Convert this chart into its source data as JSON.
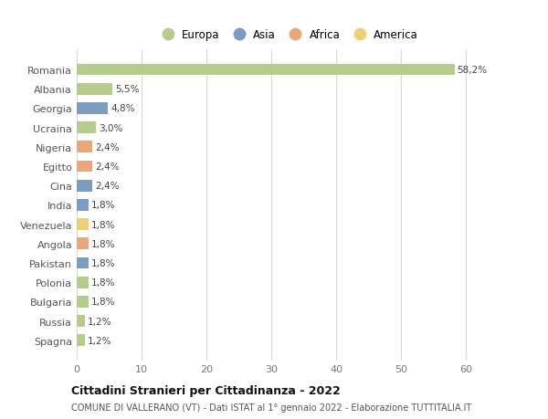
{
  "countries": [
    "Romania",
    "Albania",
    "Georgia",
    "Ucraina",
    "Nigeria",
    "Egitto",
    "Cina",
    "India",
    "Venezuela",
    "Angola",
    "Pakistan",
    "Polonia",
    "Bulgaria",
    "Russia",
    "Spagna"
  ],
  "values": [
    58.2,
    5.5,
    4.8,
    3.0,
    2.4,
    2.4,
    2.4,
    1.8,
    1.8,
    1.8,
    1.8,
    1.8,
    1.8,
    1.2,
    1.2
  ],
  "labels": [
    "58,2%",
    "5,5%",
    "4,8%",
    "3,0%",
    "2,4%",
    "2,4%",
    "2,4%",
    "1,8%",
    "1,8%",
    "1,8%",
    "1,8%",
    "1,8%",
    "1,8%",
    "1,2%",
    "1,2%"
  ],
  "continent": [
    "Europa",
    "Europa",
    "Asia",
    "Europa",
    "Africa",
    "Africa",
    "Asia",
    "Asia",
    "America",
    "Africa",
    "Asia",
    "Europa",
    "Europa",
    "Europa",
    "Europa"
  ],
  "colors": {
    "Europa": "#b5cc8e",
    "Asia": "#7b9dc0",
    "Africa": "#e8a87c",
    "America": "#f0d070"
  },
  "legend_order": [
    "Europa",
    "Asia",
    "Africa",
    "America"
  ],
  "xlim": [
    0,
    65
  ],
  "xticks": [
    0,
    10,
    20,
    30,
    40,
    50,
    60
  ],
  "title": "Cittadini Stranieri per Cittadinanza - 2022",
  "subtitle": "COMUNE DI VALLERANO (VT) - Dati ISTAT al 1° gennaio 2022 - Elaborazione TUTTITALIA.IT",
  "background_color": "#ffffff",
  "grid_color": "#d8d8d8",
  "bar_height": 0.6
}
